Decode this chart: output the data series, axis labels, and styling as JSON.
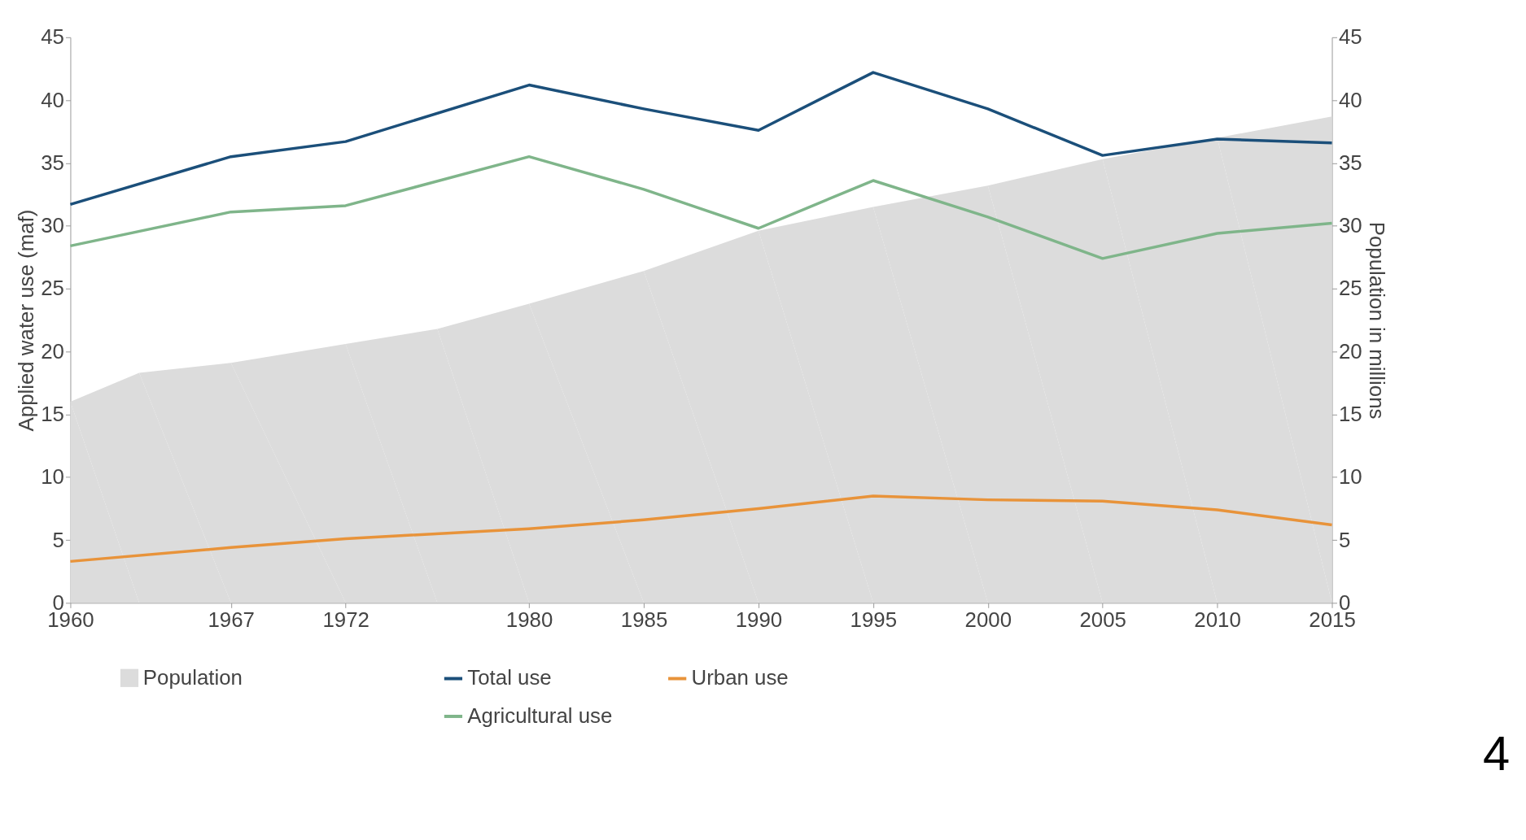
{
  "chart_data": {
    "type": "line",
    "xlabel": null,
    "ylabel": "Applied water use (maf)",
    "y2label": "Population in millions",
    "xlim": [
      1960,
      2015
    ],
    "xticks": [
      1960,
      1967,
      1972,
      1980,
      1985,
      1990,
      1995,
      2000,
      2005,
      2010,
      2015
    ],
    "ylim": [
      0,
      45
    ],
    "yticks": [
      0,
      5,
      10,
      15,
      20,
      25,
      30,
      35,
      40,
      45
    ],
    "y2lim": [
      0,
      45
    ],
    "y2ticks": [
      0,
      5,
      10,
      15,
      20,
      25,
      30,
      35,
      40,
      45
    ],
    "grid": false,
    "legend": "bottom",
    "series": [
      {
        "name": "Population",
        "type": "area",
        "axis": "y2",
        "color": "#dcdcdc",
        "x": [
          1960,
          1963,
          1967,
          1972,
          1976,
          1980,
          1985,
          1990,
          1995,
          2000,
          2005,
          2010,
          2015
        ],
        "values": [
          16.0,
          18.3,
          19.1,
          20.6,
          21.8,
          23.8,
          26.4,
          29.6,
          31.5,
          33.2,
          35.3,
          37.0,
          38.7
        ]
      },
      {
        "name": "Total use",
        "type": "line",
        "color": "#1b4f7a",
        "x": [
          1960,
          1967,
          1972,
          1980,
          1985,
          1990,
          1995,
          2000,
          2005,
          2010,
          2015
        ],
        "values": [
          31.7,
          35.5,
          36.7,
          41.2,
          39.3,
          37.6,
          42.2,
          39.3,
          35.6,
          36.9,
          36.6
        ]
      },
      {
        "name": "Agricultural use",
        "type": "line",
        "color": "#7fb58a",
        "x": [
          1960,
          1967,
          1972,
          1980,
          1985,
          1990,
          1995,
          2000,
          2005,
          2010,
          2015
        ],
        "values": [
          28.4,
          31.1,
          31.6,
          35.5,
          32.9,
          29.8,
          33.6,
          30.7,
          27.4,
          29.4,
          30.2
        ]
      },
      {
        "name": "Urban use",
        "type": "line",
        "color": "#e8933a",
        "x": [
          1960,
          1967,
          1972,
          1980,
          1985,
          1990,
          1995,
          2000,
          2005,
          2010,
          2015
        ],
        "values": [
          3.3,
          4.4,
          5.1,
          5.9,
          6.6,
          7.5,
          8.5,
          8.2,
          8.1,
          7.4,
          6.2
        ]
      }
    ],
    "annotations": [
      "4"
    ]
  }
}
